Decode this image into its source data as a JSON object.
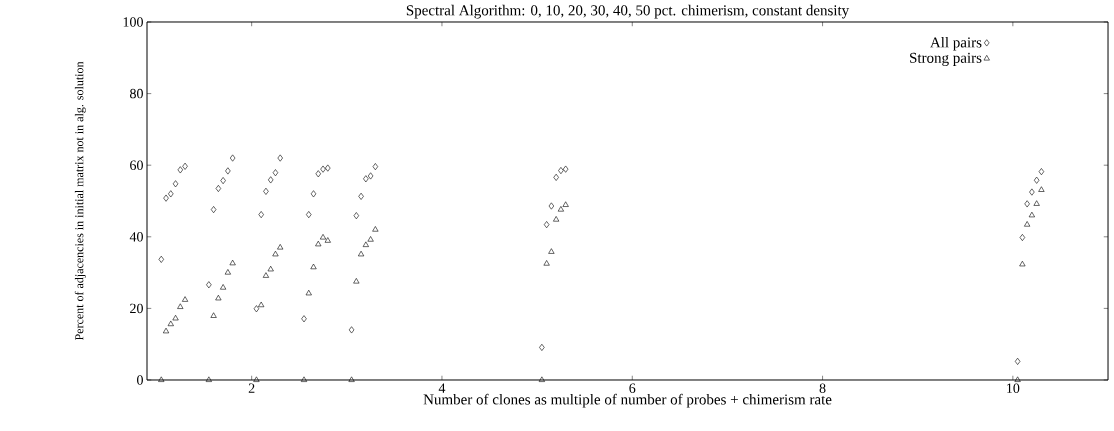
{
  "chart_data": {
    "type": "scatter",
    "title": "Spectral Algorithm: 0, 10, 20, 30, 40, 50 pct. chimerism, constant density",
    "xlabel": "Number of clones as multiple of number of probes + chimerism rate",
    "ylabel": "Percent of adjacencies in initial matrix not in alg. solution",
    "xlim": [
      0.9,
      11
    ],
    "ylim": [
      0,
      100
    ],
    "xticks": [
      2,
      4,
      6,
      8,
      10
    ],
    "yticks": [
      0,
      20,
      40,
      60,
      80,
      100
    ],
    "legend": "top right",
    "grid": false,
    "series": [
      {
        "name": "All pairs",
        "color": "#000000",
        "marker": "diamond",
        "x": [
          1.05,
          1.1,
          1.15,
          1.2,
          1.25,
          1.3,
          1.55,
          1.6,
          1.65,
          1.7,
          1.75,
          1.8,
          2.05,
          2.1,
          2.15,
          2.2,
          2.25,
          2.3,
          2.55,
          2.6,
          2.65,
          2.7,
          2.75,
          2.8,
          3.05,
          3.1,
          3.15,
          3.2,
          3.25,
          3.3,
          5.05,
          5.1,
          5.15,
          5.2,
          5.25,
          5.3,
          10.05,
          10.1,
          10.15,
          10.2,
          10.25,
          10.3
        ],
        "values": [
          33.7,
          50.8,
          52,
          54.8,
          58.7,
          59.7,
          26.6,
          47.6,
          53.5,
          55.7,
          58.4,
          62,
          19.9,
          46.2,
          52.7,
          55.9,
          57.9,
          62,
          17.1,
          46.2,
          52,
          57.6,
          58.9,
          59.2,
          14,
          45.9,
          51.3,
          56.2,
          57,
          59.6,
          9.1,
          43.4,
          48.6,
          56.6,
          58.5,
          58.9,
          5.2,
          39.8,
          49.2,
          52.5,
          55.8,
          58.2
        ]
      },
      {
        "name": "Strong pairs",
        "color": "#000000",
        "marker": "triangle",
        "x": [
          1.05,
          1.1,
          1.15,
          1.2,
          1.25,
          1.3,
          1.55,
          1.6,
          1.65,
          1.7,
          1.75,
          1.8,
          2.05,
          2.1,
          2.15,
          2.2,
          2.25,
          2.3,
          2.55,
          2.6,
          2.65,
          2.7,
          2.75,
          2.8,
          3.05,
          3.1,
          3.15,
          3.2,
          3.25,
          3.3,
          5.05,
          5.1,
          5.15,
          5.2,
          5.25,
          5.3,
          10.05,
          10.1,
          10.15,
          10.2,
          10.25,
          10.3
        ],
        "values": [
          0,
          13.6,
          15.6,
          17.2,
          20.4,
          22.4,
          0,
          17.9,
          22.8,
          25.8,
          30,
          32.6,
          0,
          20.9,
          29.1,
          30.9,
          35.1,
          37,
          0,
          24.2,
          31.5,
          37.9,
          39.8,
          38.9,
          0,
          27.5,
          35.1,
          37.7,
          39.2,
          42,
          0,
          32.5,
          35.8,
          44.8,
          47.6,
          48.9,
          0,
          32.3,
          43.4,
          46,
          49.2,
          53.1
        ]
      }
    ]
  }
}
